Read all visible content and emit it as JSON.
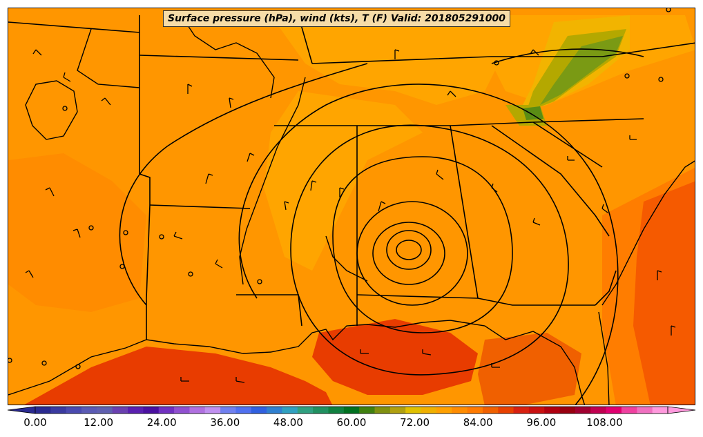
{
  "map": {
    "title": "Surface pressure (hPa), wind (kts), T (F) Valid: 201805291000",
    "region": "Southeastern United States",
    "fields": [
      "Surface pressure (hPa)",
      "wind (kts)",
      "T (F)"
    ],
    "valid_time": "201805291000"
  },
  "colorbar": {
    "min": 0,
    "max": 120,
    "step": 3,
    "extend": "both",
    "tick_labels": [
      "0.00",
      "12.00",
      "24.00",
      "36.00",
      "48.00",
      "60.00",
      "72.00",
      "84.00",
      "96.00",
      "108.00"
    ],
    "colors": [
      "#2a2a90",
      "#3a3aa0",
      "#4a4ab0",
      "#5a5ab4",
      "#6060b0",
      "#6a40b0",
      "#5a20b0",
      "#4a10a0",
      "#7030c0",
      "#9050d0",
      "#b070e0",
      "#c090f0",
      "#7080f0",
      "#5070f0",
      "#3060e0",
      "#3080d0",
      "#30a0c0",
      "#30a080",
      "#209060",
      "#108040",
      "#007020",
      "#408010",
      "#809010",
      "#b0a010",
      "#e0c000",
      "#f0b000",
      "#ffa000",
      "#ff8c00",
      "#ff7a00",
      "#f06000",
      "#e84000",
      "#d82010",
      "#c81010",
      "#b00010",
      "#980010",
      "#a00030",
      "#c00050",
      "#e00070",
      "#f040a0",
      "#f070c0",
      "#ff99dd"
    ]
  },
  "colors": {
    "base_orange": "#ff9600",
    "mid_orange": "#ffa500",
    "deep_orange": "#ff7d00",
    "red_orange": "#e83c00",
    "amber": "#f2b400",
    "olive": "#b4a800",
    "green": "#5a8c14",
    "outline": "#000000"
  },
  "pressure_low": {
    "center_label": ""
  }
}
